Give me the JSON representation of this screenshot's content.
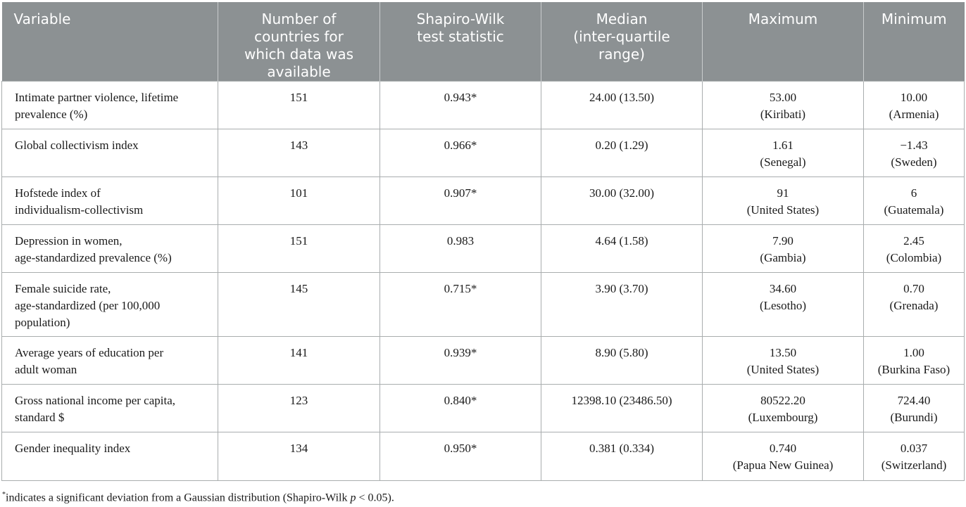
{
  "table": {
    "headers": [
      "Variable",
      "Number of countries for which data was available",
      "Shapiro-Wilk test statistic",
      "Median (inter-quartile range)",
      "Maximum",
      "Minimum"
    ],
    "header_lines": [
      [
        "Variable"
      ],
      [
        "Number of",
        "countries for",
        "which data was",
        "available"
      ],
      [
        "Shapiro-Wilk",
        "test statistic"
      ],
      [
        "Median",
        "(inter-quartile",
        "range)"
      ],
      [
        "Maximum"
      ],
      [
        "Minimum"
      ]
    ],
    "rows": [
      {
        "variable": [
          "Intimate partner violence, lifetime",
          "prevalence (%)"
        ],
        "n": "151",
        "sw": "0.943*",
        "median": "24.00 (13.50)",
        "max_value": "53.00",
        "max_country": "(Kiribati)",
        "min_value": "10.00",
        "min_country": "(Armenia)"
      },
      {
        "variable": [
          "Global collectivism index"
        ],
        "n": "143",
        "sw": "0.966*",
        "median": "0.20 (1.29)",
        "max_value": "1.61",
        "max_country": "(Senegal)",
        "min_value": "−1.43",
        "min_country": "(Sweden)"
      },
      {
        "variable": [
          "Hofstede index of",
          "individualism-collectivism"
        ],
        "n": "101",
        "sw": "0.907*",
        "median": "30.00 (32.00)",
        "max_value": "91",
        "max_country": "(United States)",
        "min_value": "6",
        "min_country": "(Guatemala)"
      },
      {
        "variable": [
          "Depression in women,",
          "age-standardized prevalence (%)"
        ],
        "n": "151",
        "sw": "0.983",
        "median": "4.64 (1.58)",
        "max_value": "7.90",
        "max_country": "(Gambia)",
        "min_value": "2.45",
        "min_country": "(Colombia)"
      },
      {
        "variable": [
          "Female suicide rate,",
          "age-standardized (per 100,000",
          "population)"
        ],
        "n": "145",
        "sw": "0.715*",
        "median": "3.90 (3.70)",
        "max_value": "34.60",
        "max_country": "(Lesotho)",
        "min_value": "0.70",
        "min_country": "(Grenada)"
      },
      {
        "variable": [
          "Average years of education per",
          "adult woman"
        ],
        "n": "141",
        "sw": "0.939*",
        "median": "8.90 (5.80)",
        "max_value": "13.50",
        "max_country": "(United States)",
        "min_value": "1.00",
        "min_country": "(Burkina Faso)"
      },
      {
        "variable": [
          "Gross national income per capita,",
          "standard $"
        ],
        "n": "123",
        "sw": "0.840*",
        "median": "12398.10 (23486.50)",
        "max_value": "80522.20",
        "max_country": "(Luxembourg)",
        "min_value": "724.40",
        "min_country": "(Burundi)"
      },
      {
        "variable": [
          "Gender inequality index"
        ],
        "n": "134",
        "sw": "0.950*",
        "median": "0.381 (0.334)",
        "max_value": "0.740",
        "max_country": "(Papua New Guinea)",
        "min_value": "0.037",
        "min_country": "(Switzerland)"
      }
    ]
  },
  "footnote": {
    "marker": "*",
    "text_before": "indicates a significant deviation from a Gaussian distribution (Shapiro-Wilk ",
    "p_symbol": "p",
    "text_after": " < 0.05)."
  }
}
